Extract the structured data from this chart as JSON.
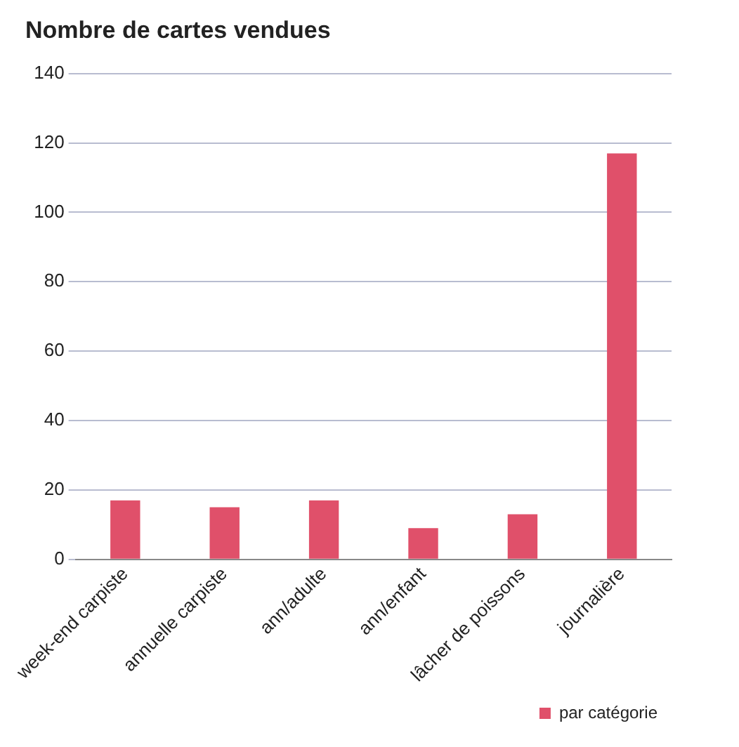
{
  "chart_data": {
    "type": "bar",
    "title": "Nombre de cartes vendues",
    "categories": [
      "week-end carpiste",
      "annuelle carpiste",
      "ann/adulte",
      "ann/enfant",
      "lâcher de poissons",
      "journalière"
    ],
    "series": [
      {
        "name": "par catégorie",
        "color": "#e0506a",
        "values": [
          17,
          15,
          17,
          9,
          13,
          117
        ]
      }
    ],
    "ylim": [
      0,
      140
    ],
    "yticks": [
      0,
      20,
      40,
      60,
      80,
      100,
      120,
      140
    ],
    "grid": "y",
    "legend": "bottom right"
  }
}
